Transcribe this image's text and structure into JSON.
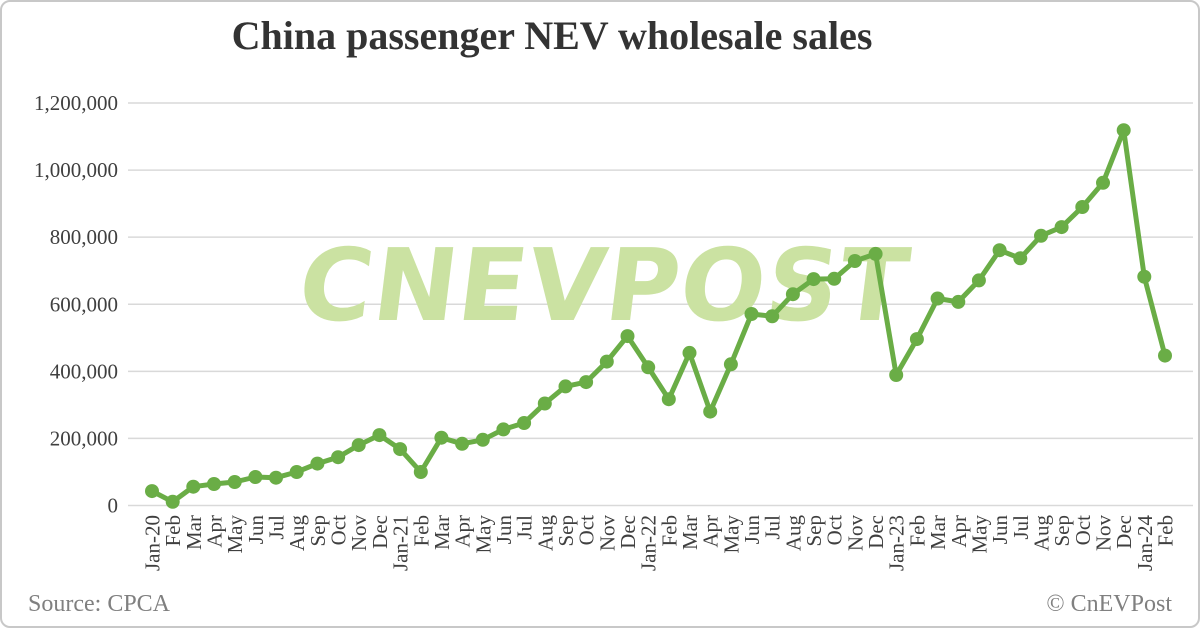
{
  "card": {
    "title": "China passenger NEV wholesale sales",
    "source": "Source: CPCA",
    "copyright": "© CnEVPost",
    "watermark": "CNEVPOST"
  },
  "colors": {
    "line": "#6aad46",
    "marker": "#6aad46",
    "watermark": "#cbe2a2",
    "grid": "#d9d9d9",
    "axis_text": "#3f3f3f",
    "title_text": "#333333",
    "footer_text": "#808080",
    "card_border": "#c8c8c8",
    "background": "#ffffff"
  },
  "chart_data": {
    "type": "line",
    "title": "China passenger NEV wholesale sales",
    "xlabel": "",
    "ylabel": "",
    "ylim": [
      0,
      1200000
    ],
    "ytick_step": 200000,
    "ytick_labels": [
      "0",
      "200,000",
      "400,000",
      "600,000",
      "800,000",
      "1,000,000",
      "1,200,000"
    ],
    "grid": true,
    "legend": "none",
    "marker": "circle",
    "categories": [
      "Jan-20",
      "Feb",
      "Mar",
      "Apr",
      "May",
      "Jun",
      "Jul",
      "Aug",
      "Sep",
      "Oct",
      "Nov",
      "Dec",
      "Jan-21",
      "Feb",
      "Mar",
      "Apr",
      "May",
      "Jun",
      "Jul",
      "Aug",
      "Sep",
      "Oct",
      "Nov",
      "Dec",
      "Jan-22",
      "Feb",
      "Mar",
      "Apr",
      "May",
      "Jun",
      "Jul",
      "Aug",
      "Sep",
      "Oct",
      "Nov",
      "Dec",
      "Jan-23",
      "Feb",
      "Mar",
      "Apr",
      "May",
      "Jun",
      "Jul",
      "Aug",
      "Sep",
      "Oct",
      "Nov",
      "Dec",
      "Jan-24",
      "Feb"
    ],
    "values": [
      43000,
      11000,
      56000,
      64000,
      70000,
      85000,
      83000,
      100000,
      125000,
      144000,
      180000,
      210000,
      168000,
      100000,
      202000,
      184000,
      196000,
      227000,
      246000,
      304000,
      355000,
      368000,
      429000,
      505000,
      412000,
      317000,
      455000,
      280000,
      421000,
      571000,
      564000,
      630000,
      675000,
      676000,
      729000,
      750000,
      389000,
      496000,
      617000,
      607000,
      671000,
      761000,
      737000,
      804000,
      830000,
      890000,
      962000,
      1119000,
      682000,
      447000
    ]
  }
}
